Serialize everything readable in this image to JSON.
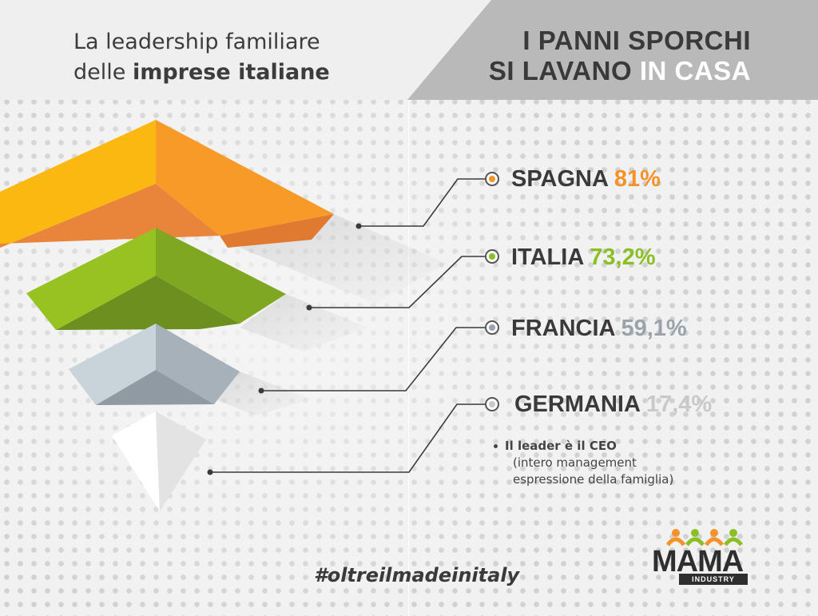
{
  "header": {
    "line1": "La leadership familiare",
    "line2_plain": "delle ",
    "line2_bold": "imprese italiane"
  },
  "banner": {
    "line1": "I PANNI SPORCHI",
    "line2_plain": "SI LAVANO ",
    "line2_highlight": "IN CASA",
    "color": "#b9b9b9"
  },
  "entries": [
    {
      "country": "SPAGNA",
      "value": "81%",
      "color": "#f5922a"
    },
    {
      "country": "ITALIA",
      "value": "73,2%",
      "color": "#8cbf26"
    },
    {
      "country": "FRANCIA",
      "value": "59,1%",
      "color": "#9aa3ab"
    },
    {
      "country": "GERMANIA",
      "value": "17,4%",
      "color": "#c9c9c9"
    }
  ],
  "note": {
    "title": "Il leader è il CEO",
    "sub_line1": "(intero management",
    "sub_line2": "espressione della famiglia)"
  },
  "hashtag": "#oltreilmadeinitaly",
  "logo": {
    "word": "MAMA",
    "sub": "INDUSTRY",
    "accent_orange": "#f5922a",
    "accent_green": "#8cbf26"
  }
}
